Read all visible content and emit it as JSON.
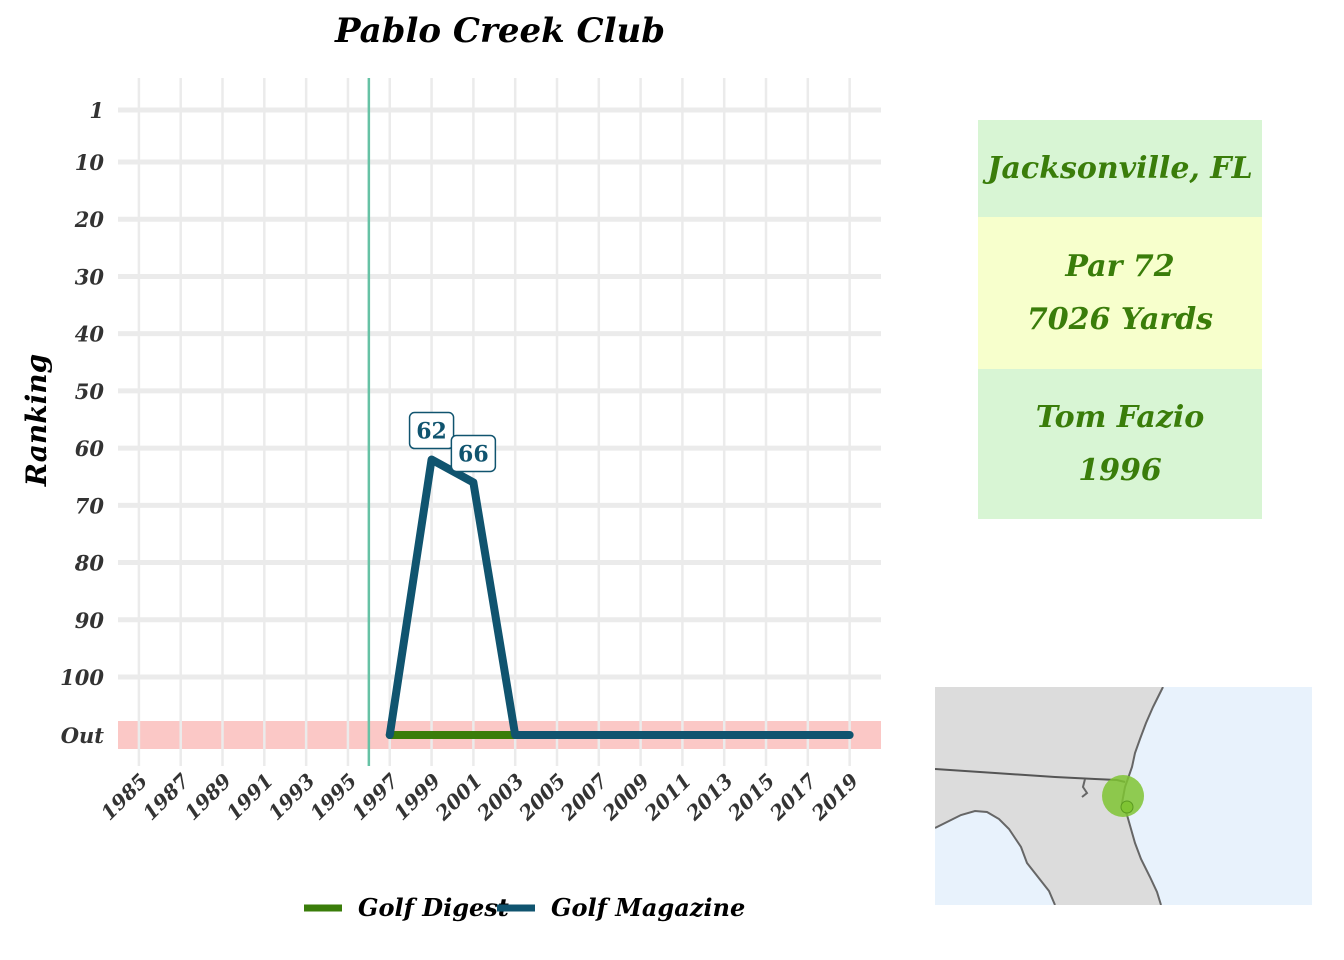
{
  "chart_data": {
    "type": "line",
    "title": "Pablo Creek Club",
    "ylabel": "Ranking",
    "xlabel": "",
    "x_ticks": [
      "1985",
      "1987",
      "1989",
      "1991",
      "1993",
      "1995",
      "1997",
      "1999",
      "2001",
      "2003",
      "2005",
      "2007",
      "2009",
      "2011",
      "2013",
      "2015",
      "2017",
      "2019"
    ],
    "y_ticks": [
      "1",
      "10",
      "20",
      "30",
      "40",
      "50",
      "60",
      "70",
      "80",
      "90",
      "100",
      "Out"
    ],
    "y_reversed": true,
    "out_band_color": "#fbc8c6",
    "reference_line": {
      "x": 1996,
      "color": "#66c2a5"
    },
    "grid": true,
    "legend_position": "bottom",
    "series": [
      {
        "name": "Golf Digest",
        "color": "#3a7d0a",
        "points": [
          {
            "x": 1997,
            "y": "Out"
          },
          {
            "x": 2003,
            "y": "Out"
          }
        ]
      },
      {
        "name": "Golf Magazine",
        "color": "#10546f",
        "points": [
          {
            "x": 1997,
            "y": "Out"
          },
          {
            "x": 1999,
            "y": 62
          },
          {
            "x": 2001,
            "y": 66
          },
          {
            "x": 2003,
            "y": "Out"
          },
          {
            "x": 2019,
            "y": "Out"
          }
        ]
      }
    ],
    "data_labels": [
      {
        "series": "Golf Magazine",
        "x": 1999,
        "y": 62,
        "text": "62"
      },
      {
        "series": "Golf Magazine",
        "x": 2001,
        "y": 66,
        "text": "66"
      }
    ]
  },
  "info_panel": {
    "text_color": "#3a7d0a",
    "boxes": [
      {
        "lines": [
          "Jacksonville, FL"
        ],
        "bg": "#d8f5d4"
      },
      {
        "lines": [
          "Par 72",
          "7026 Yards"
        ],
        "bg": "#f7ffcc"
      },
      {
        "lines": [
          "Tom Fazio",
          "1996"
        ],
        "bg": "#d8f5d4"
      }
    ]
  },
  "map": {
    "land_color": "#dcdcdc",
    "water_color": "#e8f2fc",
    "marker_color": "#7fc433"
  }
}
